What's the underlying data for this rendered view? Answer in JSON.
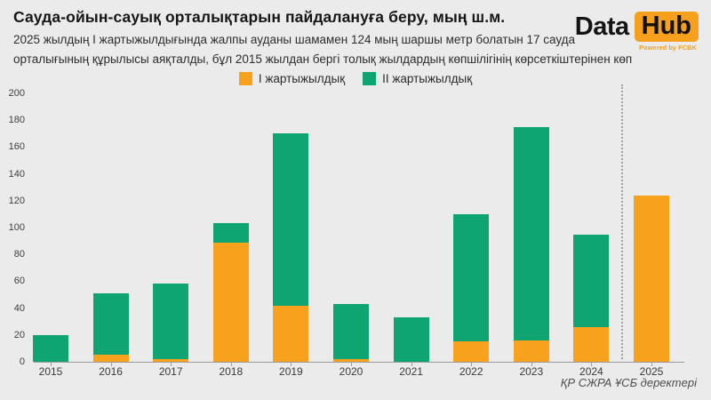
{
  "header": {
    "title": "Сауда-ойын-сауық орталықтарын пайдалануға беру, мың ш.м.",
    "subtitle_line1": "2025 жылдың I жартыжылдығында жалпы ауданы шамамен 124 мың шаршы метр болатын 17 сауда",
    "subtitle_line2": "орталығының құрылысы аяқталды, бұл 2015 жылдан бергі толық жылдардың көпшілігінің көрсеткіштерінен көп"
  },
  "logo": {
    "text_data": "Data",
    "text_hub": "Hub",
    "tagline": "Powered by FCBK",
    "accent_color": "#F7A01D"
  },
  "legend": [
    {
      "label": "I жартыжылдық",
      "color": "#F7A11D"
    },
    {
      "label": "II жартыжылдық",
      "color": "#0FA573"
    }
  ],
  "source": "ҚР СЖРА ҰСБ деректері",
  "colors": {
    "background": "#EBEBEB",
    "first_half": "#F7A11D",
    "second_half": "#0FA573",
    "axis": "#9B9B9B"
  },
  "chart_data": {
    "type": "bar",
    "stacked": true,
    "title": "Сауда-ойын-сауық орталықтарын пайдалануға беру, мың ш.м.",
    "xlabel": "",
    "ylabel": "мың ш.м.",
    "ylim": [
      0,
      200
    ],
    "ytick_step": 20,
    "grid": false,
    "legend_position": "top",
    "categories": [
      "2015",
      "2016",
      "2017",
      "2018",
      "2019",
      "2020",
      "2021",
      "2022",
      "2023",
      "2024",
      "2025"
    ],
    "series": [
      {
        "name": "I жартыжылдық",
        "color": "#F7A11D",
        "values": [
          0,
          5,
          2,
          89,
          42,
          2,
          0,
          15,
          16,
          26,
          124
        ]
      },
      {
        "name": "II жартыжылдық",
        "color": "#0FA573",
        "values": [
          20,
          46,
          56,
          14,
          128,
          41,
          33,
          95,
          159,
          69,
          0
        ]
      }
    ],
    "totals": [
      20,
      51,
      58,
      103,
      170,
      43,
      33,
      110,
      175,
      95,
      124
    ],
    "separator_before_category": "2025"
  }
}
